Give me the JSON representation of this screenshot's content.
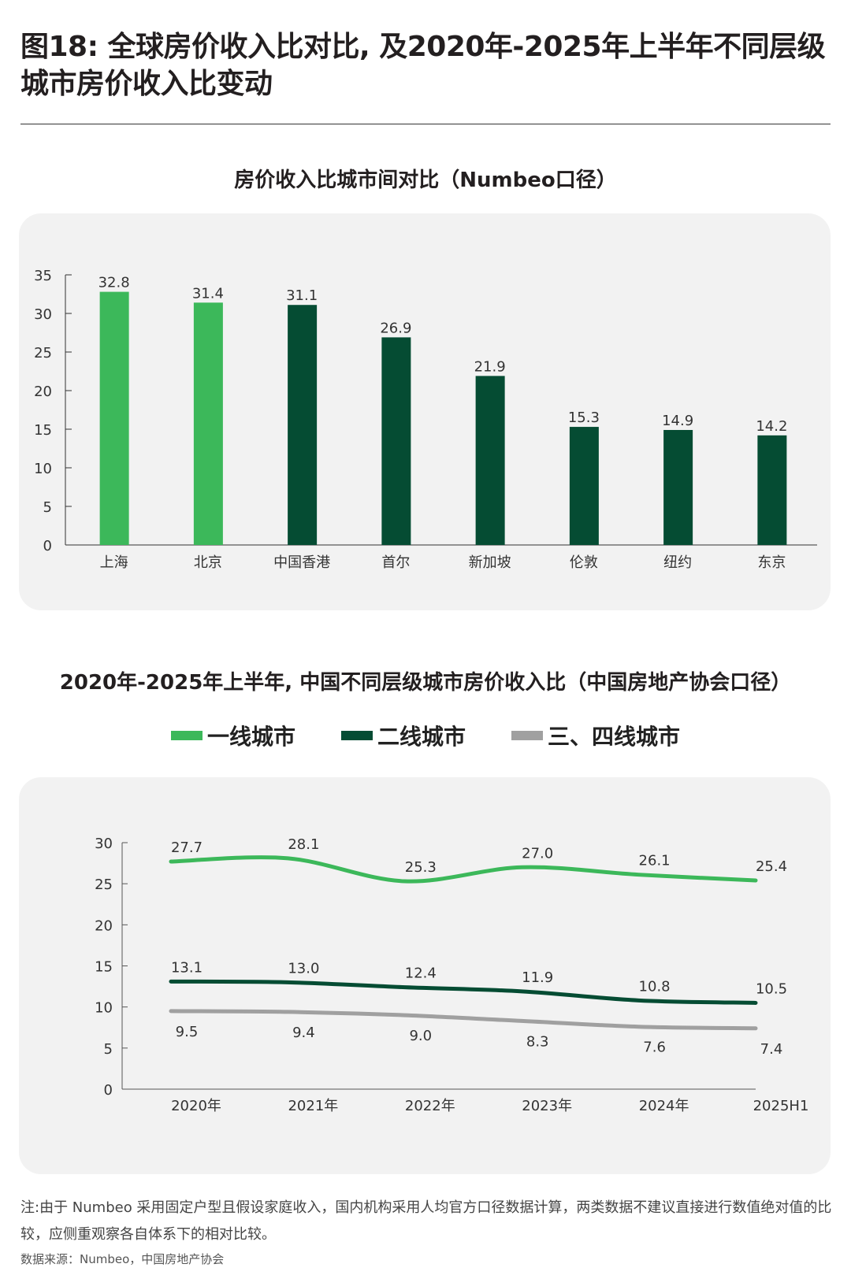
{
  "title": "图18: 全球房价收入比对比, 及2020年-2025年上半年不同层级城市房价收入比变动",
  "colors": {
    "tier1": "#3cb85a",
    "tier2": "#054c33",
    "tier34": "#a0a0a0",
    "panel": "#f2f2f2"
  },
  "chart_data": [
    {
      "type": "bar",
      "title": "房价收入比城市间对比（Numbeo口径）",
      "categories": [
        "上海",
        "北京",
        "中国香港",
        "首尔",
        "新加坡",
        "伦敦",
        "纽约",
        "东京"
      ],
      "values": [
        32.8,
        31.4,
        31.1,
        26.9,
        21.9,
        15.3,
        14.9,
        14.2
      ],
      "bar_colors": [
        "#3cb85a",
        "#3cb85a",
        "#054c33",
        "#054c33",
        "#054c33",
        "#054c33",
        "#054c33",
        "#054c33"
      ],
      "yticks": [
        0,
        5,
        10,
        15,
        20,
        25,
        30,
        35
      ],
      "ylim": [
        0,
        35
      ],
      "grid": false
    },
    {
      "type": "line",
      "title": "2020年-2025年上半年, 中国不同层级城市房价收入比（中国房地产协会口径）",
      "categories": [
        "2020年",
        "2021年",
        "2022年",
        "2023年",
        "2024年",
        "2025H1"
      ],
      "series": [
        {
          "name": "一线城市",
          "color": "#3cb85a",
          "values": [
            27.7,
            28.1,
            25.3,
            27.0,
            26.1,
            25.4
          ]
        },
        {
          "name": "二线城市",
          "color": "#054c33",
          "values": [
            13.1,
            13.0,
            12.4,
            11.9,
            10.8,
            10.5
          ]
        },
        {
          "name": "三、四线城市",
          "color": "#a0a0a0",
          "values": [
            9.5,
            9.4,
            9.0,
            8.3,
            7.6,
            7.4
          ]
        }
      ],
      "yticks": [
        0,
        5,
        10,
        15,
        20,
        25,
        30
      ],
      "ylim": [
        0,
        30
      ],
      "legend": "top",
      "grid": false
    }
  ],
  "note": "注:由于 Numbeo 采用固定户型且假设家庭收入，国内机构采用人均官方口径数据计算，两类数据不建议直接进行数值绝对值的比较，应侧重观察各自体系下的相对比较。",
  "source": "数据来源：Numbeo，中国房地产协会"
}
